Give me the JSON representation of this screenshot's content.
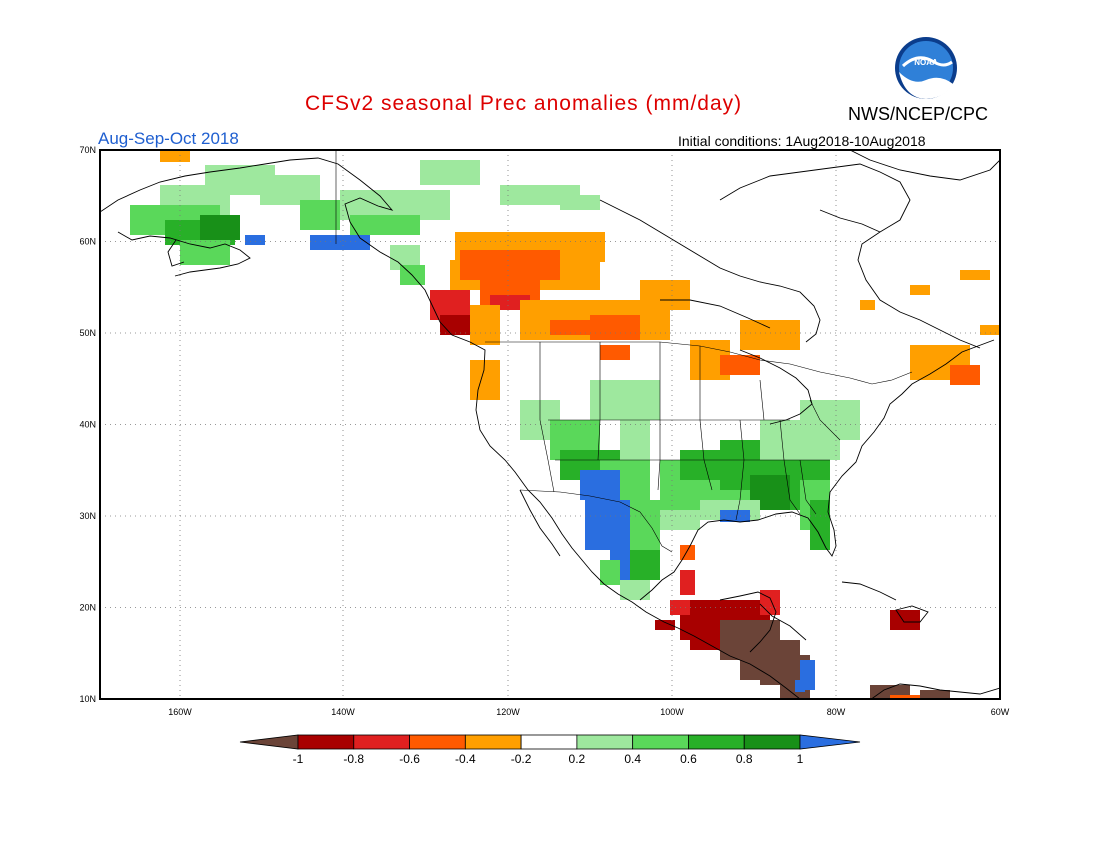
{
  "title": "CFSv2 seasonal Prec anomalies (mm/day)",
  "season": "Aug-Sep-Oct 2018",
  "initial_conditions": "Initial conditions: 1Aug2018-10Aug2018",
  "agency": "NWS/NCEP/CPC",
  "logo_text": "NOAA",
  "lat_labels": [
    "70N",
    "60N",
    "50N",
    "40N",
    "30N",
    "20N",
    "10N"
  ],
  "lon_labels": [
    "160W",
    "140W",
    "120W",
    "100W",
    "80W",
    "60W"
  ],
  "colorbar": {
    "labels": [
      "-1",
      "-0.8",
      "-0.6",
      "-0.4",
      "-0.2",
      "0.2",
      "0.4",
      "0.6",
      "0.8",
      "1"
    ],
    "colors": [
      "#6b4438",
      "#a80000",
      "#e02020",
      "#ff5a00",
      "#ff9f00",
      "#ffffff",
      "#9ee89e",
      "#5ad85a",
      "#28b028",
      "#189018",
      "#2a6ee0"
    ]
  }
}
